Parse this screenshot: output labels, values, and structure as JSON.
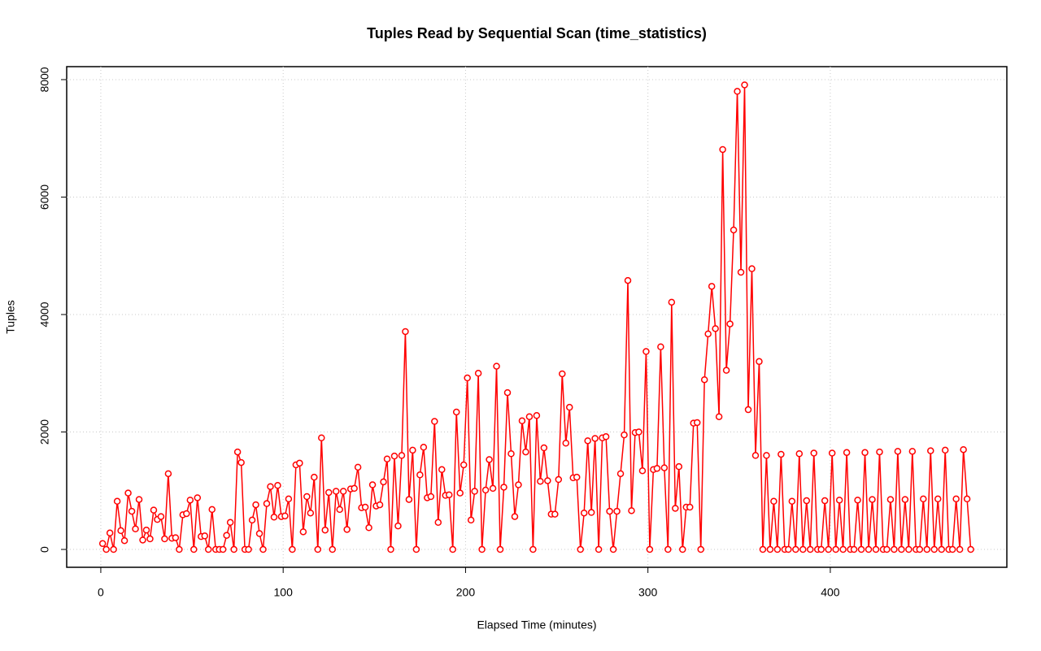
{
  "chart_data": {
    "type": "line",
    "title": "Tuples Read by Sequential Scan (time_statistics)",
    "x_label": "Elapsed Time (minutes)",
    "y_label": "Tuples",
    "xlim": [
      -18.7,
      496.8
    ],
    "ylim": [
      -304,
      8221
    ],
    "xticks": [
      0,
      100,
      200,
      300,
      400
    ],
    "yticks": [
      0,
      2000,
      4000,
      6000,
      8000
    ],
    "grid": true,
    "x": [
      1,
      3,
      5,
      7,
      9,
      11,
      13,
      15,
      17,
      19,
      21,
      23,
      25,
      27,
      29,
      31,
      33,
      35,
      37,
      39,
      41,
      43,
      45,
      47,
      49,
      51,
      53,
      55,
      57,
      59,
      61,
      63,
      65,
      67,
      69,
      71,
      73,
      75,
      77,
      79,
      81,
      83,
      85,
      87,
      89,
      91,
      93,
      95,
      97,
      99,
      101,
      103,
      105,
      107,
      109,
      111,
      113,
      115,
      117,
      119,
      121,
      123,
      125,
      127,
      129,
      131,
      133,
      135,
      137,
      139,
      141,
      143,
      145,
      147,
      149,
      151,
      153,
      155,
      157,
      159,
      161,
      163,
      165,
      167,
      169,
      171,
      173,
      175,
      177,
      179,
      181,
      183,
      185,
      187,
      189,
      191,
      193,
      195,
      197,
      199,
      201,
      203,
      205,
      207,
      209,
      211,
      213,
      215,
      217,
      219,
      221,
      223,
      225,
      227,
      229,
      231,
      233,
      235,
      237,
      239,
      241,
      243,
      245,
      247,
      249,
      251,
      253,
      255,
      257,
      259,
      261,
      263,
      265,
      267,
      269,
      271,
      273,
      275,
      277,
      279,
      281,
      283,
      285,
      287,
      289,
      291,
      293,
      295,
      297,
      299,
      301,
      303,
      305,
      307,
      309,
      311,
      313,
      315,
      317,
      319,
      321,
      323,
      325,
      327,
      329,
      331,
      333,
      335,
      337,
      339,
      341,
      343,
      345,
      347,
      349,
      351,
      353,
      355,
      357,
      359,
      361,
      363,
      365,
      367,
      369,
      371,
      373,
      375,
      377,
      379,
      381,
      383,
      385,
      387,
      389,
      391,
      393,
      395,
      397,
      399,
      401,
      403,
      405,
      407,
      409,
      411,
      413,
      415,
      417,
      419,
      421,
      423,
      425,
      427,
      429,
      431,
      433,
      435,
      437,
      439,
      441,
      443,
      445,
      447,
      449,
      451,
      453,
      455,
      457,
      459,
      461,
      463,
      465,
      467,
      469,
      471,
      473,
      475,
      477
    ],
    "series": [
      {
        "name": "Tuples",
        "color": "#ff0000",
        "values": [
          100,
          0,
          280,
          0,
          820,
          320,
          150,
          960,
          650,
          350,
          850,
          160,
          330,
          180,
          670,
          510,
          560,
          180,
          1290,
          190,
          200,
          0,
          590,
          610,
          840,
          0,
          880,
          220,
          230,
          0,
          680,
          0,
          0,
          0,
          240,
          460,
          0,
          1660,
          1480,
          0,
          0,
          500,
          760,
          270,
          0,
          780,
          1070,
          550,
          1090,
          560,
          570,
          860,
          0,
          1440,
          1470,
          300,
          900,
          620,
          1230,
          0,
          1900,
          330,
          970,
          0,
          990,
          680,
          990,
          340,
          1030,
          1040,
          1400,
          710,
          720,
          370,
          1100,
          740,
          760,
          1150,
          1540,
          0,
          1590,
          400,
          1600,
          3710,
          850,
          1690,
          0,
          1270,
          1740,
          880,
          900,
          2180,
          460,
          1360,
          920,
          930,
          0,
          2340,
          960,
          1440,
          2920,
          500,
          990,
          3000,
          0,
          1010,
          1530,
          1040,
          3120,
          0,
          1060,
          2670,
          1630,
          560,
          1100,
          2190,
          1660,
          2260,
          0,
          2280,
          1160,
          1730,
          1170,
          600,
          600,
          1190,
          2990,
          1810,
          2420,
          1220,
          1230,
          0,
          620,
          1850,
          630,
          1890,
          0,
          1900,
          1920,
          650,
          0,
          650,
          1290,
          1950,
          4580,
          660,
          1990,
          2000,
          1340,
          3370,
          0,
          1360,
          1380,
          3450,
          1390,
          0,
          4210,
          700,
          1410,
          0,
          720,
          720,
          2150,
          2160,
          0,
          2890,
          3670,
          4480,
          3760,
          2260,
          6810,
          3050,
          3840,
          5440,
          7800,
          4720,
          7910,
          2380,
          4780,
          1600,
          3200,
          0,
          1600,
          0,
          820,
          0,
          1620,
          0,
          0,
          820,
          0,
          1630,
          0,
          830,
          0,
          1640,
          0,
          0,
          830,
          0,
          1640,
          0,
          840,
          0,
          1650,
          0,
          0,
          840,
          0,
          1650,
          0,
          850,
          0,
          1660,
          0,
          0,
          850,
          0,
          1670,
          0,
          850,
          0,
          1670,
          0,
          0,
          860,
          0,
          1680,
          0,
          860,
          0,
          1690,
          0,
          0,
          860,
          0,
          1700,
          860,
          0
        ]
      }
    ]
  }
}
